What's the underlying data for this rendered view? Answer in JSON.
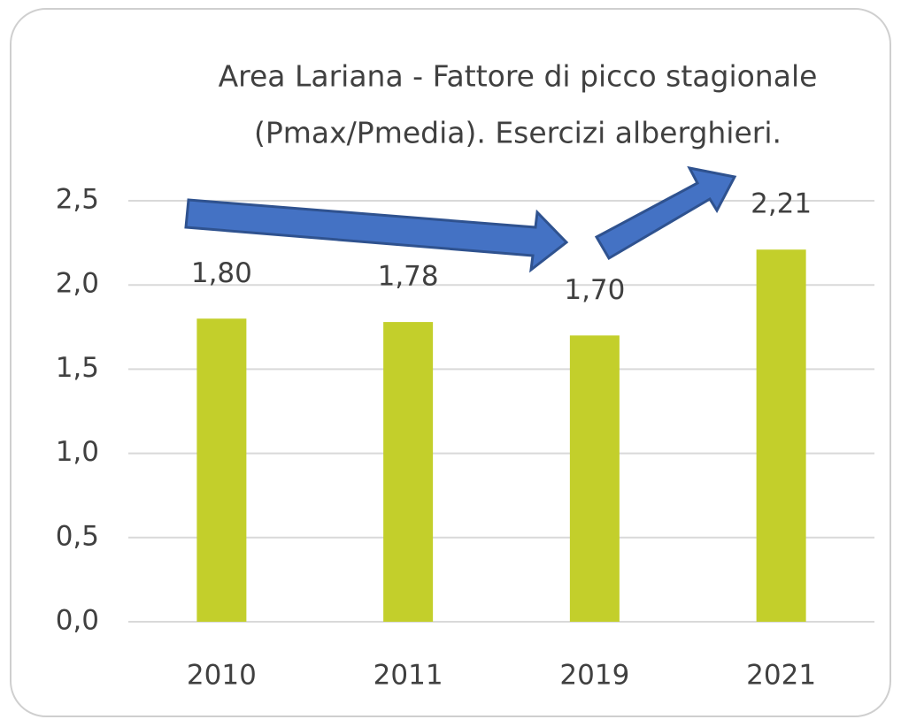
{
  "chart_data": {
    "type": "bar",
    "title": [
      "Area Lariana - Fattore di picco stagionale",
      "(Pmax/Pmedia). Esercizi alberghieri."
    ],
    "categories": [
      "2010",
      "2011",
      "2019",
      "2021"
    ],
    "values": [
      1.8,
      1.78,
      1.7,
      2.21
    ],
    "value_labels": [
      "1,80",
      "1,78",
      "1,70",
      "2,21"
    ],
    "color": "#c3cf2b",
    "ylim": [
      0,
      2.5
    ],
    "yticks": [
      {
        "value": 0,
        "label": "0,0"
      },
      {
        "value": 0.5,
        "label": "0,5"
      },
      {
        "value": 1.0,
        "label": "1,0"
      },
      {
        "value": 1.5,
        "label": "1,5"
      },
      {
        "value": 2.0,
        "label": "2,0"
      },
      {
        "value": 2.5,
        "label": "2,5"
      }
    ],
    "grid": true
  }
}
